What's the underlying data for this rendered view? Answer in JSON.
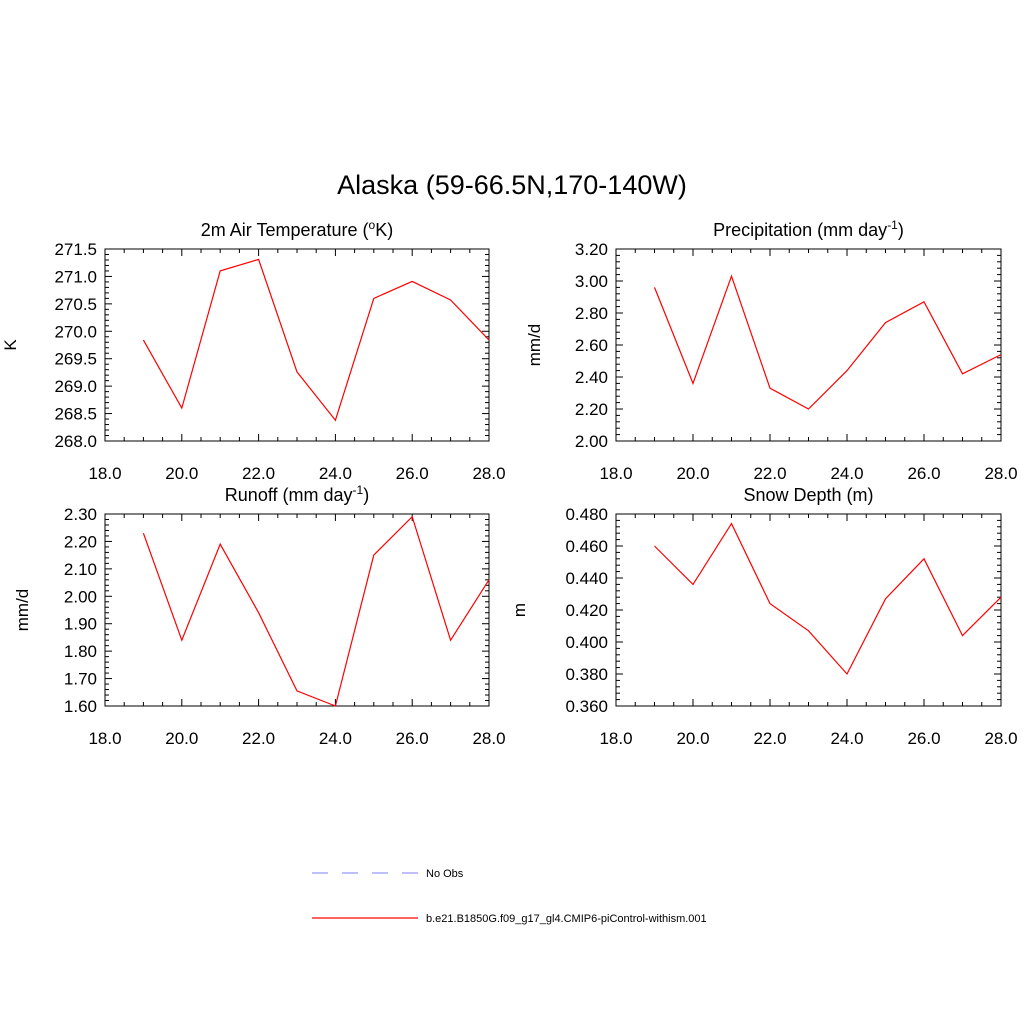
{
  "title": "Alaska (59-66.5N,170-140W)",
  "chart_data": [
    {
      "type": "line",
      "title_main": "2m Air Temperature (",
      "title_sup": "o",
      "title_tail": "K)",
      "ylabel": "K",
      "xlim": [
        18.0,
        28.0
      ],
      "ylim": [
        268.0,
        271.5
      ],
      "xticks": [
        "18.0",
        "20.0",
        "22.0",
        "24.0",
        "26.0",
        "28.0"
      ],
      "yticks": [
        "268.0",
        "268.5",
        "269.0",
        "269.5",
        "270.0",
        "270.5",
        "271.0",
        "271.5"
      ],
      "series": [
        {
          "name": "b.e21.B1850G.f09_g17_gl4.CMIP6-piControl-withism.001",
          "color": "#ff0000",
          "x": [
            19,
            20,
            21,
            22,
            23,
            24,
            25,
            26,
            27,
            28
          ],
          "y": [
            269.84,
            268.6,
            271.1,
            271.31,
            269.26,
            268.38,
            270.6,
            270.91,
            270.57,
            269.84
          ]
        }
      ]
    },
    {
      "type": "line",
      "title_main": "Precipitation (mm day",
      "title_sup": "-1",
      "title_tail": ")",
      "ylabel": "mm/d",
      "xlim": [
        18.0,
        28.0
      ],
      "ylim": [
        2.0,
        3.2
      ],
      "xticks": [
        "18.0",
        "20.0",
        "22.0",
        "24.0",
        "26.0",
        "28.0"
      ],
      "yticks": [
        "2.00",
        "2.20",
        "2.40",
        "2.60",
        "2.80",
        "3.00",
        "3.20"
      ],
      "series": [
        {
          "name": "b.e21.B1850G.f09_g17_gl4.CMIP6-piControl-withism.001",
          "color": "#ff0000",
          "x": [
            19,
            20,
            21,
            22,
            23,
            24,
            25,
            26,
            27,
            28
          ],
          "y": [
            2.96,
            2.36,
            3.03,
            2.33,
            2.2,
            2.44,
            2.74,
            2.87,
            2.42,
            2.54
          ]
        }
      ]
    },
    {
      "type": "line",
      "title_main": "Runoff (mm day",
      "title_sup": "-1",
      "title_tail": ")",
      "ylabel": "mm/d",
      "xlim": [
        18.0,
        28.0
      ],
      "ylim": [
        1.6,
        2.3
      ],
      "xticks": [
        "18.0",
        "20.0",
        "22.0",
        "24.0",
        "26.0",
        "28.0"
      ],
      "yticks": [
        "1.60",
        "1.70",
        "1.80",
        "1.90",
        "2.00",
        "2.10",
        "2.20",
        "2.30"
      ],
      "series": [
        {
          "name": "b.e21.B1850G.f09_g17_gl4.CMIP6-piControl-withism.001",
          "color": "#ff0000",
          "x": [
            19,
            20,
            21,
            22,
            23,
            24,
            25,
            26,
            27,
            28
          ],
          "y": [
            2.23,
            1.84,
            2.19,
            1.94,
            1.655,
            1.6,
            2.15,
            2.29,
            1.84,
            2.06
          ]
        }
      ]
    },
    {
      "type": "line",
      "title_main": "Snow Depth (m)",
      "title_sup": "",
      "title_tail": "",
      "ylabel": "m",
      "xlim": [
        18.0,
        28.0
      ],
      "ylim": [
        0.36,
        0.48
      ],
      "xticks": [
        "18.0",
        "20.0",
        "22.0",
        "24.0",
        "26.0",
        "28.0"
      ],
      "yticks": [
        "0.360",
        "0.380",
        "0.400",
        "0.420",
        "0.440",
        "0.460",
        "0.480"
      ],
      "series": [
        {
          "name": "b.e21.B1850G.f09_g17_gl4.CMIP6-piControl-withism.001",
          "color": "#ff0000",
          "x": [
            19,
            20,
            21,
            22,
            23,
            24,
            25,
            26,
            27,
            28
          ],
          "y": [
            0.46,
            0.436,
            0.474,
            0.424,
            0.407,
            0.38,
            0.427,
            0.452,
            0.404,
            0.428
          ]
        }
      ]
    }
  ],
  "legend": [
    {
      "label": "No Obs",
      "color": "#9999ff",
      "style": "dashed"
    },
    {
      "label": "b.e21.B1850G.f09_g17_gl4.CMIP6-piControl-withism.001",
      "color": "#ff0000",
      "style": "solid"
    }
  ]
}
